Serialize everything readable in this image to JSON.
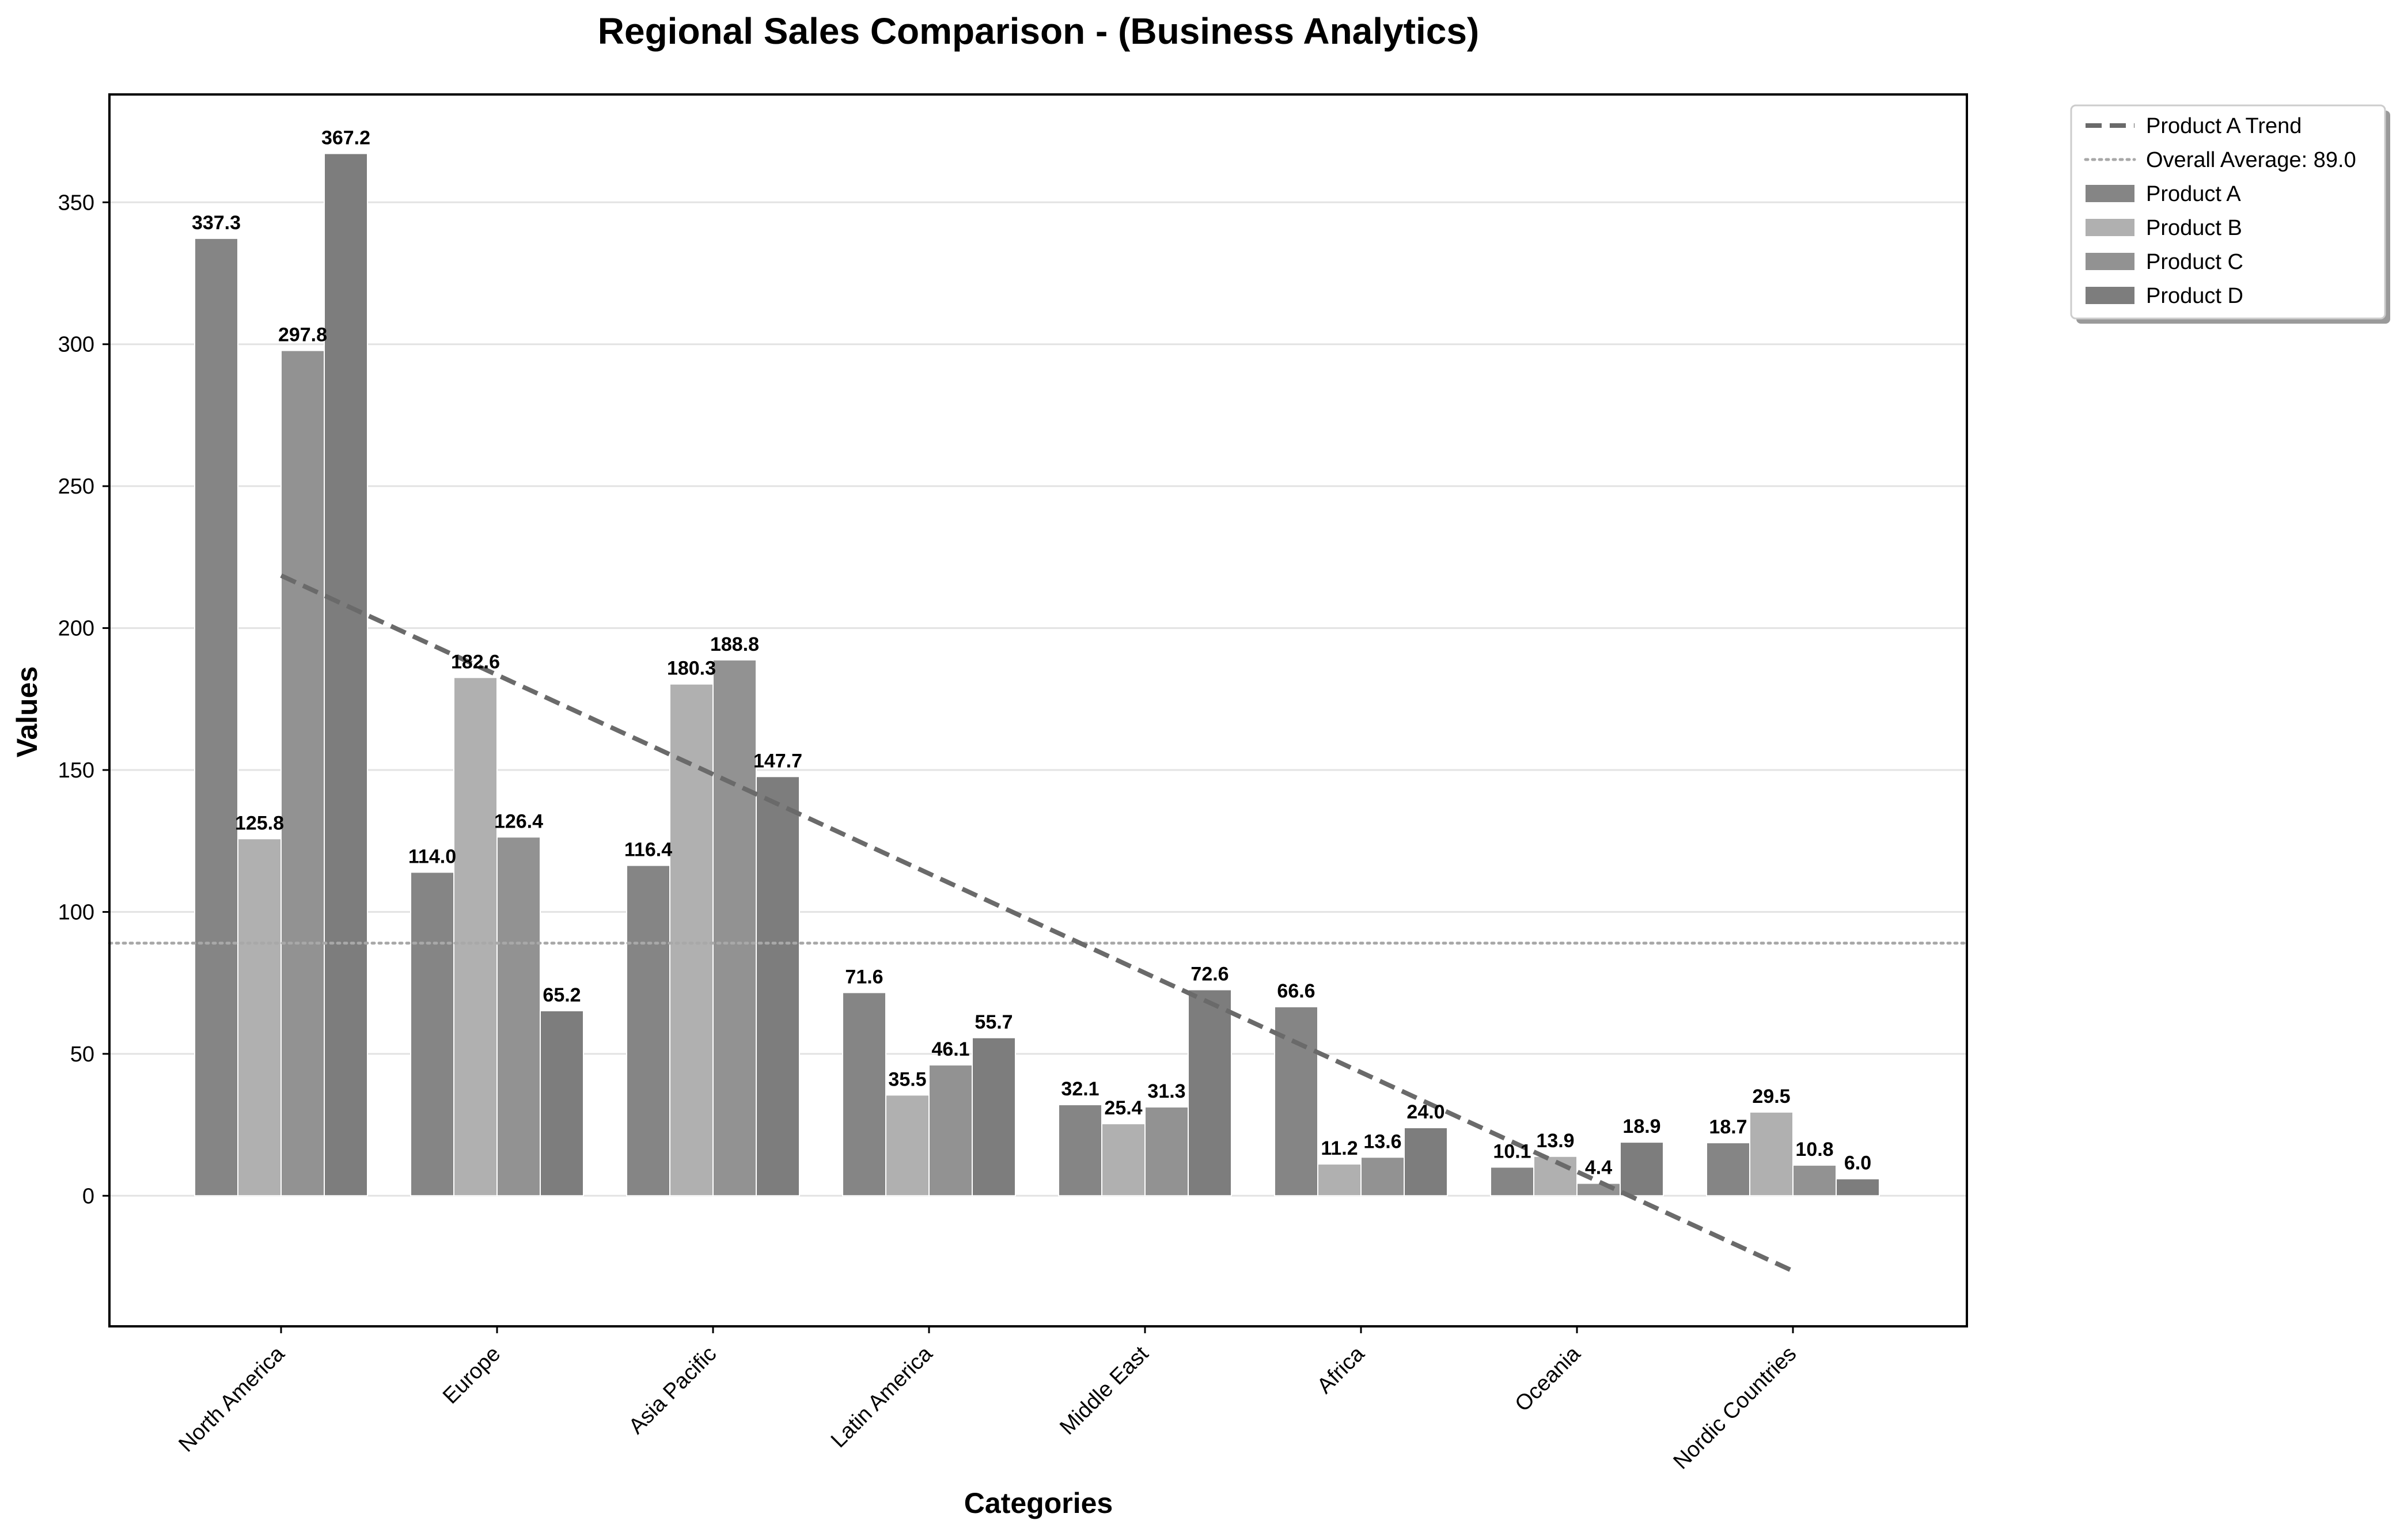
{
  "chart_data": {
    "type": "bar",
    "title": "Regional Sales Comparison - (Business Analytics)",
    "xlabel": "Categories",
    "ylabel": "Values",
    "ylim": [
      -46,
      388
    ],
    "yticks": [
      0,
      50,
      100,
      150,
      200,
      250,
      300,
      350
    ],
    "grid": "horizontal",
    "legend_position": "outside-top-right",
    "categories": [
      "North America",
      "Europe",
      "Asia Pacific",
      "Latin America",
      "Middle East",
      "Africa",
      "Oceania",
      "Nordic Countries"
    ],
    "series": [
      {
        "name": "Product A",
        "color": "#858585",
        "values": [
          337.3,
          114.0,
          116.4,
          71.6,
          32.1,
          66.6,
          10.1,
          18.7
        ],
        "labels": [
          "337.3",
          "114.0",
          "116.4",
          "71.6",
          "32.1",
          "66.6",
          "10.1",
          "18.7"
        ]
      },
      {
        "name": "Product B",
        "color": "#b0b0b0",
        "values": [
          125.8,
          182.6,
          180.3,
          35.5,
          25.4,
          11.2,
          13.9,
          29.5
        ],
        "labels": [
          "125.8",
          "182.6",
          "180.3",
          "35.5",
          "25.4",
          "11.2",
          "13.9",
          "29.5"
        ]
      },
      {
        "name": "Product C",
        "color": "#929292",
        "values": [
          297.8,
          126.4,
          188.8,
          46.1,
          31.3,
          13.6,
          4.4,
          10.8
        ],
        "labels": [
          "297.8",
          "126.4",
          "188.8",
          "46.1",
          "31.3",
          "13.6",
          "4.4",
          "10.8"
        ]
      },
      {
        "name": "Product D",
        "color": "#7d7d7d",
        "values": [
          367.2,
          65.2,
          147.7,
          55.7,
          72.6,
          24.0,
          18.9,
          6.0
        ],
        "labels": [
          "367.2",
          "65.2",
          "147.7",
          "55.7",
          "72.6",
          "24.0",
          "18.9",
          "6.0"
        ]
      }
    ],
    "trend_line": {
      "name": "Product A Trend",
      "color": "#6a6a6a",
      "style": "dashed",
      "start": 218.5,
      "end": -26.5
    },
    "average_line": {
      "name": "Overall Average: 89.0",
      "value": 89.0,
      "color": "#a8a8a8",
      "style": "dotted"
    },
    "legend": [
      "Product A Trend",
      "Overall Average: 89.0",
      "Product A",
      "Product B",
      "Product C",
      "Product D"
    ]
  }
}
